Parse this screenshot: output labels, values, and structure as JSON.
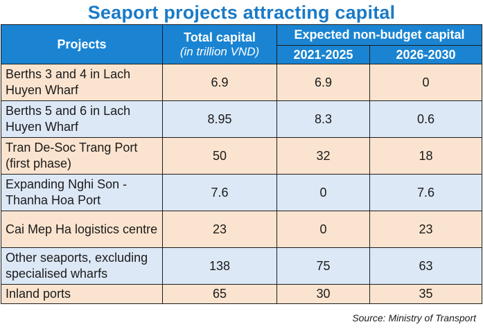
{
  "title": "Seaport projects attracting capital",
  "header": {
    "projects": "Projects",
    "total_capital": "Total capital",
    "total_capital_unit": "(in trillion VND)",
    "expected": "Expected non-budget capital",
    "period1": "2021-2025",
    "period2": "2026-2030"
  },
  "rows": [
    {
      "project": "Berths 3 and 4 in Lach Huyen Wharf",
      "total": "6.9",
      "p1": "6.9",
      "p2": "0"
    },
    {
      "project": "Berths 5 and 6 in Lach Huyen Wharf",
      "total": "8.95",
      "p1": "8.3",
      "p2": "0.6"
    },
    {
      "project": "Tran De-Soc Trang Port (first phase)",
      "total": "50",
      "p1": "32",
      "p2": "18"
    },
    {
      "project": "Expanding Nghi Son - Thanha Hoa Port",
      "total": "7.6",
      "p1": "0",
      "p2": "7.6"
    },
    {
      "project": "Cai Mep Ha logistics centre",
      "total": "23",
      "p1": "0",
      "p2": "23"
    },
    {
      "project": "Other seaports, excluding specialised wharfs",
      "total": "138",
      "p1": "75",
      "p2": "63"
    },
    {
      "project": "Inland ports",
      "total": "65",
      "p1": "30",
      "p2": "35"
    }
  ],
  "source": "Source: Ministry of Transport",
  "colors": {
    "title": "#1a7ac6",
    "header_bg": "#1a84d2",
    "row_odd": "#fbe4cf",
    "row_even": "#dde8f6"
  }
}
